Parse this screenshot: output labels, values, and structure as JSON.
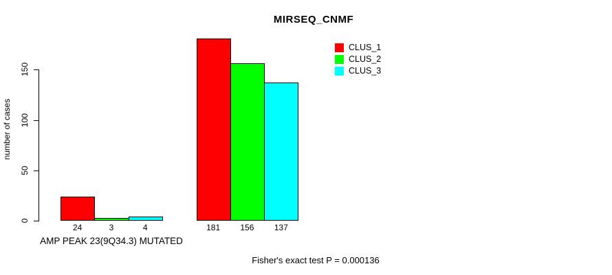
{
  "chart": {
    "title": "MIRSEQ_CNMF",
    "ylabel": "number of cases",
    "group_label": "AMP PEAK 23(9Q34.3) MUTATED",
    "annotation": "Fisher's exact test P = 0.000136"
  },
  "chart_data": {
    "type": "bar",
    "title": "MIRSEQ_CNMF",
    "xlabel": "",
    "ylabel": "number of cases",
    "categories": [
      "AMP PEAK 23(9Q34.3) MUTATED",
      ""
    ],
    "series": [
      {
        "name": "CLUS_1",
        "color": "#ff0000",
        "values": [
          24,
          181
        ]
      },
      {
        "name": "CLUS_2",
        "color": "#00ff00",
        "values": [
          3,
          156
        ]
      },
      {
        "name": "CLUS_3",
        "color": "#00ffff",
        "values": [
          4,
          137
        ]
      }
    ],
    "yticks": [
      0,
      50,
      100,
      150
    ],
    "ylim": [
      0,
      185
    ],
    "grid": false,
    "bar_value_labels_shown": true,
    "legend_position": "top-right",
    "legend_entries": [
      "CLUS_1",
      "CLUS_2",
      "CLUS_3"
    ],
    "annotation": "Fisher's exact test P = 0.000136",
    "bar_border_color": "#000000"
  }
}
